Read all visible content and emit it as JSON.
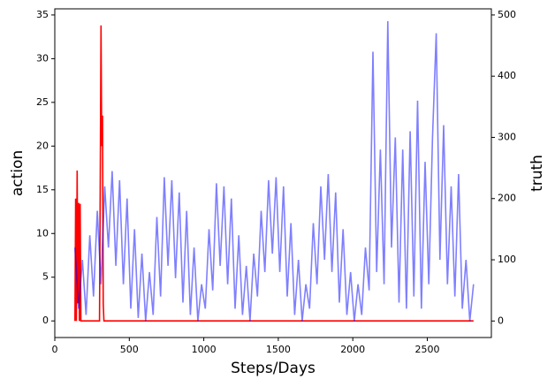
{
  "chart_data": {
    "type": "line",
    "xlabel": "Steps/Days",
    "ylabel": "action",
    "y2label": "truth",
    "ylabel_color": "red",
    "y2label_color": "blue",
    "xlim": [
      0,
      2930
    ],
    "ylim": [
      -1.9,
      35.7
    ],
    "y2lim": [
      -27,
      510
    ],
    "xticks": [
      0,
      500,
      1000,
      1500,
      2000,
      2500
    ],
    "yticks": [
      0,
      5,
      10,
      15,
      20,
      25,
      30,
      35
    ],
    "y2ticks": [
      0,
      100,
      200,
      300,
      400,
      500
    ],
    "series": [
      {
        "name": "action",
        "color": "#ff0000",
        "alpha": 1,
        "x": [
          135,
          140,
          145,
          150,
          155,
          160,
          165,
          170,
          175,
          180,
          300,
          305,
          310,
          315,
          320,
          325,
          330,
          2810
        ],
        "values": [
          0,
          14,
          0,
          17.2,
          2,
          13.5,
          0,
          13.4,
          0,
          0,
          0,
          15,
          33.8,
          20,
          23.5,
          2,
          0,
          0
        ]
      },
      {
        "name": "truth",
        "color": "#0000ff",
        "alpha": 0.5,
        "axis": "y2",
        "x": [
          135,
          160,
          185,
          210,
          235,
          260,
          285,
          310,
          335,
          360,
          385,
          410,
          435,
          460,
          485,
          510,
          535,
          560,
          585,
          610,
          635,
          660,
          685,
          710,
          735,
          760,
          785,
          810,
          835,
          860,
          885,
          910,
          935,
          960,
          985,
          1010,
          1035,
          1060,
          1085,
          1110,
          1135,
          1160,
          1185,
          1210,
          1235,
          1260,
          1285,
          1310,
          1335,
          1360,
          1385,
          1410,
          1435,
          1460,
          1485,
          1510,
          1535,
          1560,
          1585,
          1610,
          1635,
          1660,
          1685,
          1710,
          1735,
          1760,
          1785,
          1810,
          1835,
          1860,
          1885,
          1910,
          1935,
          1960,
          1985,
          2010,
          2035,
          2060,
          2085,
          2110,
          2135,
          2160,
          2185,
          2210,
          2235,
          2260,
          2285,
          2310,
          2335,
          2360,
          2385,
          2410,
          2435,
          2460,
          2485,
          2510,
          2535,
          2560,
          2585,
          2610,
          2635,
          2660,
          2685,
          2710,
          2735,
          2760,
          2785,
          2810
        ],
        "values": [
          120,
          20,
          100,
          10,
          140,
          40,
          180,
          60,
          220,
          120,
          245,
          90,
          230,
          60,
          200,
          20,
          150,
          5,
          110,
          0,
          80,
          10,
          170,
          40,
          235,
          90,
          230,
          70,
          210,
          30,
          180,
          10,
          120,
          0,
          60,
          20,
          150,
          50,
          225,
          90,
          220,
          60,
          200,
          20,
          140,
          10,
          90,
          0,
          110,
          40,
          180,
          80,
          230,
          110,
          235,
          80,
          220,
          40,
          160,
          10,
          100,
          0,
          60,
          20,
          160,
          60,
          220,
          100,
          240,
          80,
          210,
          30,
          150,
          10,
          80,
          0,
          60,
          10,
          120,
          50,
          440,
          80,
          280,
          60,
          490,
          120,
          300,
          30,
          280,
          20,
          310,
          40,
          360,
          20,
          260,
          60,
          300,
          470,
          100,
          320,
          60,
          220,
          40,
          240,
          20,
          100,
          0,
          60
        ]
      }
    ]
  }
}
